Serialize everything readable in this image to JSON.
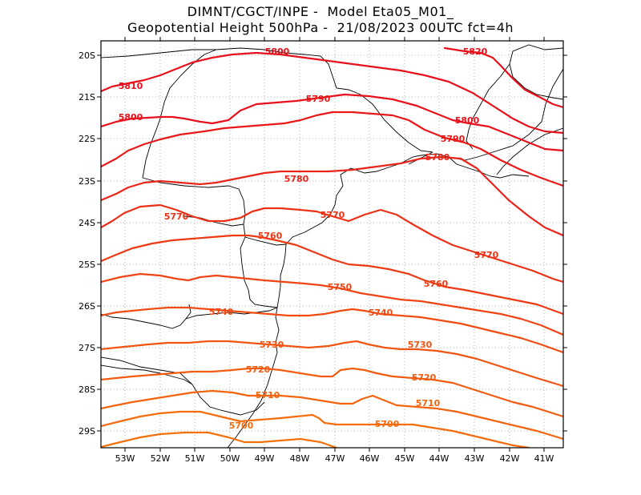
{
  "title": {
    "line1": "DIMNT/CGCT/INPE -  Model Eta05_M01_",
    "line2": "Geopotential Height 500hPa -  21/08/2023 00UTC fct=4h"
  },
  "axes": {
    "lat_labels": [
      "20S",
      "21S",
      "22S",
      "23S",
      "24S",
      "25S",
      "26S",
      "27S",
      "28S",
      "29S"
    ],
    "lon_labels": [
      "53W",
      "52W",
      "51W",
      "50W",
      "49W",
      "48W",
      "47W",
      "46W",
      "45W",
      "44W",
      "43W",
      "42W",
      "41W"
    ]
  },
  "contours": [
    {
      "value": "5820",
      "color": "#e8101a"
    },
    {
      "value": "5810",
      "color": "#e8101a"
    },
    {
      "value": "5800",
      "color": "#e8101a"
    },
    {
      "value": "5790",
      "color": "#e81818"
    },
    {
      "value": "5780",
      "color": "#ea2418"
    },
    {
      "value": "5770",
      "color": "#ec3016"
    },
    {
      "value": "5760",
      "color": "#ee3a14"
    },
    {
      "value": "5750",
      "color": "#f04414"
    },
    {
      "value": "5740",
      "color": "#f04c12"
    },
    {
      "value": "5730",
      "color": "#f25412"
    },
    {
      "value": "5720",
      "color": "#f25c10"
    },
    {
      "value": "5710",
      "color": "#f4640e"
    },
    {
      "value": "5700",
      "color": "#f46c0c"
    }
  ],
  "colors": {
    "frame": "#000000",
    "grid": "#b0b0b0",
    "coast": "#000000"
  }
}
